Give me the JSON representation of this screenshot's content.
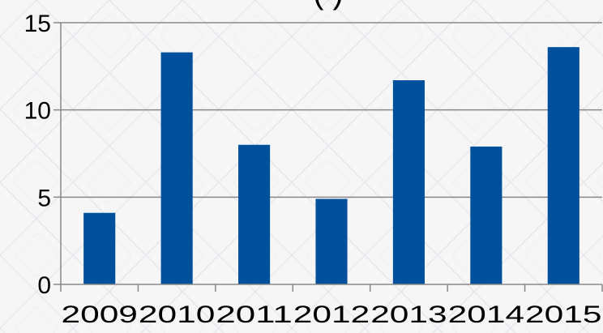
{
  "chart_data": {
    "type": "bar",
    "title": "(           )",
    "categories": [
      "2009",
      "2010",
      "2011",
      "2012",
      "2013",
      "2014",
      "2015"
    ],
    "values": [
      4.1,
      13.3,
      8.0,
      4.9,
      11.7,
      7.9,
      13.6
    ],
    "xlabel": "",
    "ylabel": "",
    "ylim": [
      0,
      15
    ],
    "yticks": [
      "0",
      "5",
      "10",
      "15"
    ],
    "grid": true,
    "legend": "none",
    "bar_color": "#00509c",
    "grid_color": "#888888",
    "background_color": "#f6f6f6"
  }
}
